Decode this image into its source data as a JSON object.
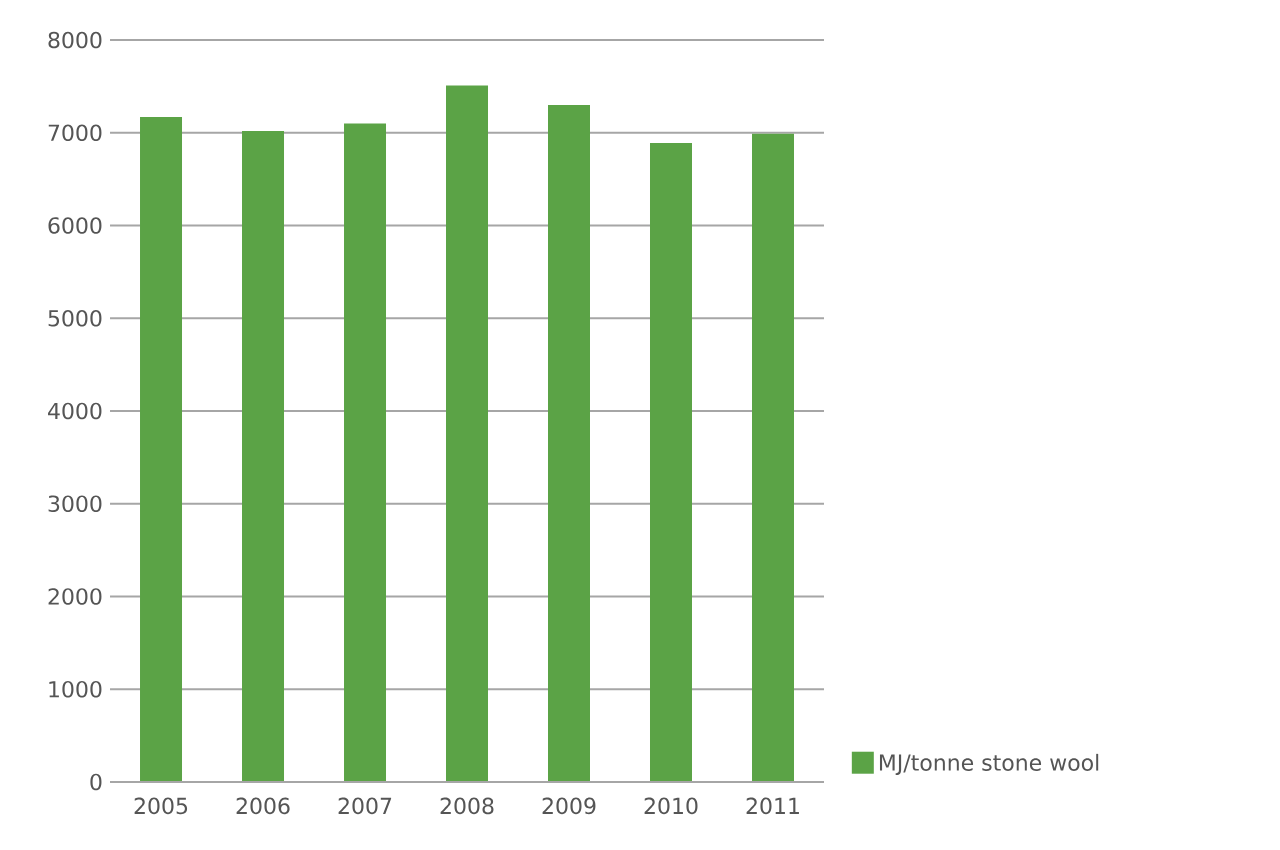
{
  "chart_data": {
    "type": "bar",
    "categories": [
      "2005",
      "2006",
      "2007",
      "2008",
      "2009",
      "2010",
      "2011"
    ],
    "series": [
      {
        "name": "MJ/tonne stone wool",
        "color": "#5ba346",
        "values": [
          7170,
          7020,
          7100,
          7510,
          7300,
          6890,
          6990
        ]
      }
    ],
    "ylim": [
      0,
      8000
    ],
    "yticks": [
      0,
      1000,
      2000,
      3000,
      4000,
      5000,
      6000,
      7000,
      8000
    ],
    "grid": "y",
    "legend": "bottom right"
  }
}
